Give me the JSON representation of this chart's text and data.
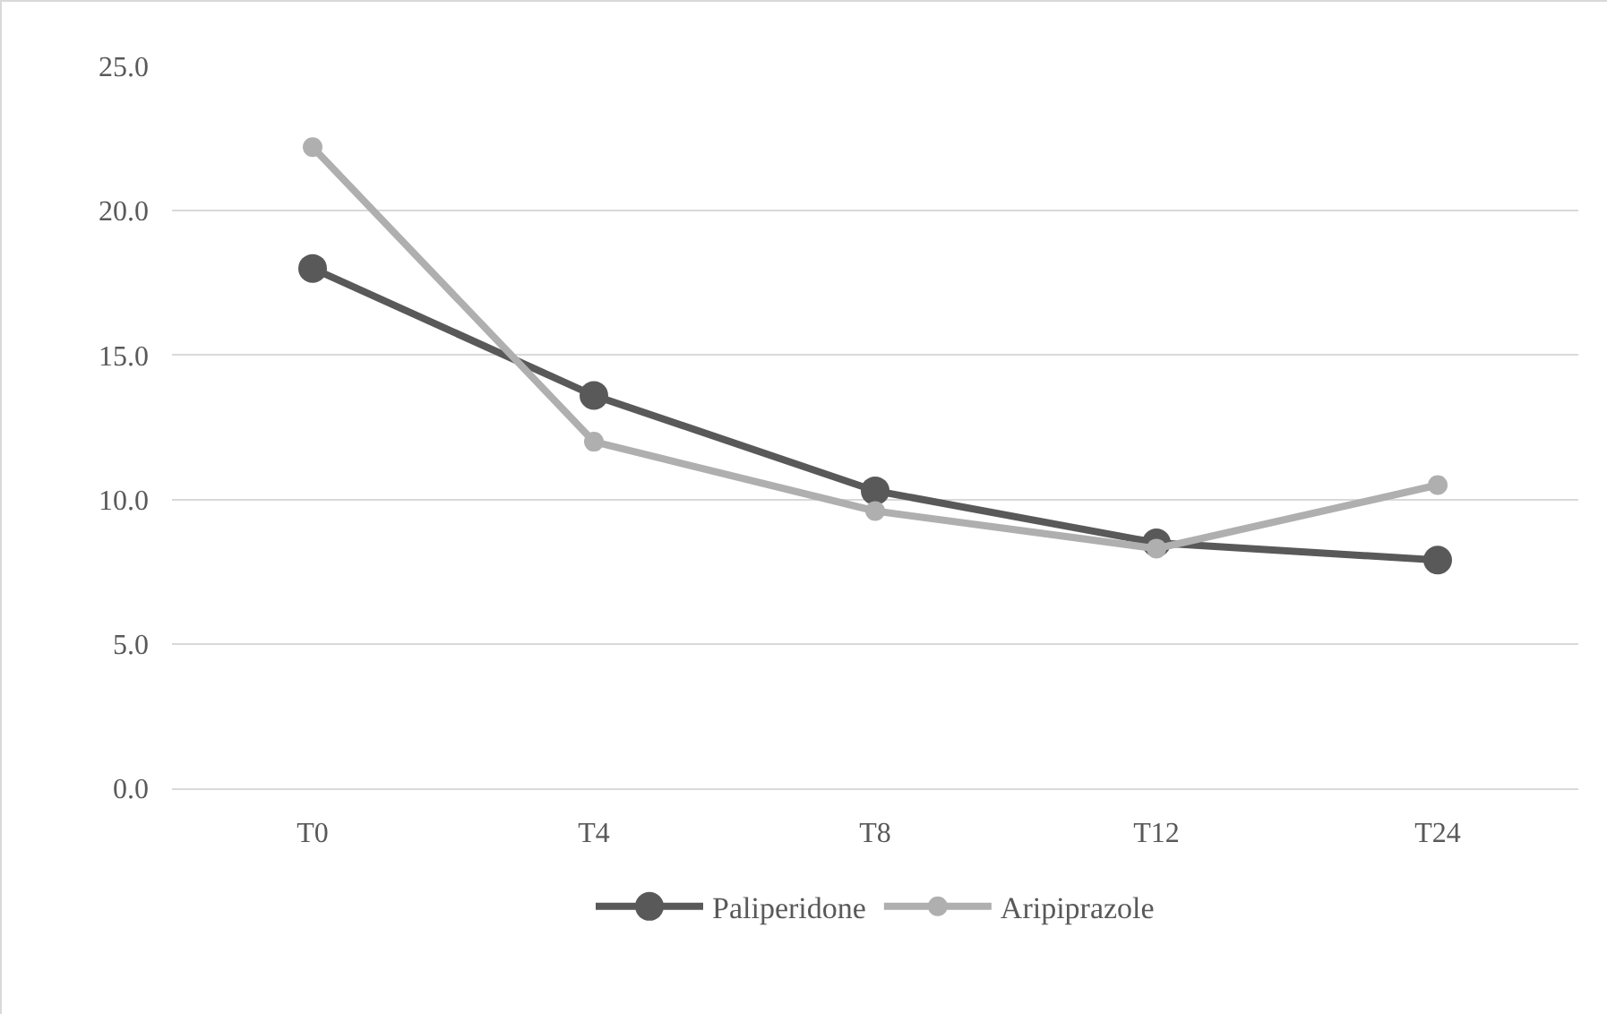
{
  "chart_data": {
    "type": "line",
    "categories": [
      "T0",
      "T4",
      "T8",
      "T12",
      "T24"
    ],
    "series": [
      {
        "name": "Paliperidone",
        "color": "#595959",
        "values": [
          18.0,
          13.6,
          10.3,
          8.5,
          7.9
        ]
      },
      {
        "name": "Aripiprazole",
        "color": "#afafaf",
        "values": [
          22.2,
          12.0,
          9.6,
          8.3,
          10.5
        ]
      }
    ],
    "ylim": [
      0,
      25
    ],
    "yticks": [
      {
        "value": 0,
        "label": "0.0"
      },
      {
        "value": 5,
        "label": "5.0"
      },
      {
        "value": 10,
        "label": "10.0"
      },
      {
        "value": 15,
        "label": "15.0"
      },
      {
        "value": 20,
        "label": "20.0"
      },
      {
        "value": 25,
        "label": "25.0"
      }
    ],
    "grid": "y",
    "legend": "bottom",
    "marker": "circle",
    "line_style": "solid"
  }
}
